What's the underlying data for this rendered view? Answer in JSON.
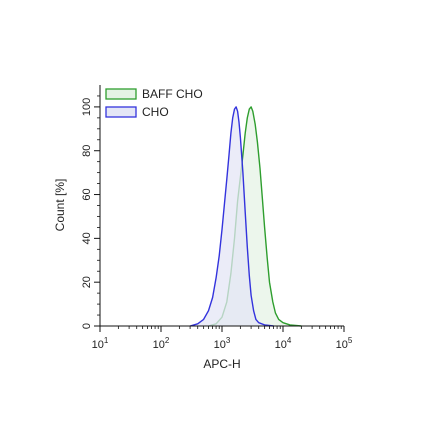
{
  "chart_data": {
    "type": "area",
    "xlabel": "APC-H",
    "ylabel": "Count [%]",
    "x_scale": "log",
    "xlim": [
      10,
      100000
    ],
    "ylim": [
      0,
      110
    ],
    "x_ticks": [
      {
        "base": "10",
        "exp": "1",
        "value": 10
      },
      {
        "base": "10",
        "exp": "2",
        "value": 100
      },
      {
        "base": "10",
        "exp": "3",
        "value": 1000
      },
      {
        "base": "10",
        "exp": "4",
        "value": 10000
      },
      {
        "base": "10",
        "exp": "5",
        "value": 100000
      }
    ],
    "y_ticks": [
      "0",
      "20",
      "40",
      "60",
      "80",
      "100"
    ],
    "grid": false,
    "legend_position": "top-left",
    "series": [
      {
        "name": "BAFF CHO",
        "color": "#2e9e2e",
        "fill": "#e5f3e5",
        "points": [
          [
            600,
            0
          ],
          [
            800,
            1
          ],
          [
            1000,
            4
          ],
          [
            1200,
            11
          ],
          [
            1400,
            24
          ],
          [
            1600,
            40
          ],
          [
            1800,
            57
          ],
          [
            2000,
            68
          ],
          [
            2200,
            78
          ],
          [
            2400,
            88
          ],
          [
            2600,
            95
          ],
          [
            2800,
            99
          ],
          [
            3000,
            100
          ],
          [
            3200,
            98
          ],
          [
            3500,
            92
          ],
          [
            3800,
            84
          ],
          [
            4200,
            72
          ],
          [
            4600,
            58
          ],
          [
            5000,
            45
          ],
          [
            5500,
            31
          ],
          [
            6000,
            20
          ],
          [
            6800,
            11
          ],
          [
            7500,
            6
          ],
          [
            8500,
            3
          ],
          [
            10000,
            1.5
          ],
          [
            13000,
            0.5
          ],
          [
            20000,
            0
          ]
        ]
      },
      {
        "name": "CHO",
        "color": "#3333dd",
        "fill": "#e4e6f6",
        "points": [
          [
            300,
            0
          ],
          [
            400,
            1
          ],
          [
            500,
            3
          ],
          [
            600,
            7
          ],
          [
            700,
            13
          ],
          [
            800,
            22
          ],
          [
            900,
            32
          ],
          [
            1000,
            44
          ],
          [
            1100,
            56
          ],
          [
            1200,
            67
          ],
          [
            1300,
            78
          ],
          [
            1400,
            88
          ],
          [
            1500,
            95
          ],
          [
            1600,
            99
          ],
          [
            1700,
            100
          ],
          [
            1800,
            98
          ],
          [
            1900,
            93
          ],
          [
            2000,
            86
          ],
          [
            2200,
            70
          ],
          [
            2400,
            52
          ],
          [
            2600,
            36
          ],
          [
            2800,
            23
          ],
          [
            3000,
            14
          ],
          [
            3300,
            7
          ],
          [
            3600,
            3
          ],
          [
            4000,
            1.5
          ],
          [
            5000,
            0.5
          ],
          [
            7000,
            0
          ]
        ]
      }
    ]
  }
}
